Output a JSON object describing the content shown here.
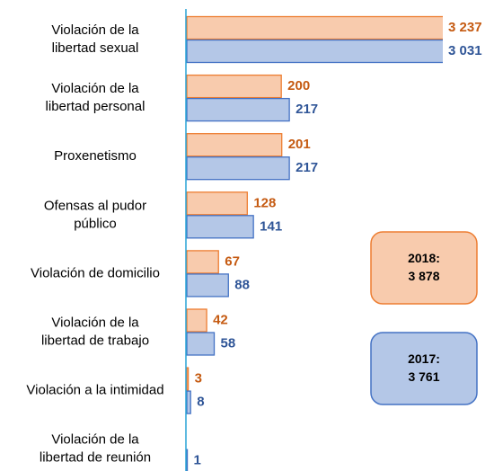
{
  "chart_data": {
    "type": "bar",
    "orientation": "horizontal",
    "categories": [
      "Violación de la\nlibertad sexual",
      "Violación de la\nlibertad personal",
      "Proxenetismo",
      "Ofensas al pudor\npúblico",
      "Violación de domicilio",
      "Violación de la\nlibertad de trabajo",
      "Violación a la intimidad",
      "Violación de la\nlibertad de reunión"
    ],
    "series": [
      {
        "color": "#f8cbad",
        "edge": "#ed7d31",
        "label_color": "#c55a11",
        "values": [
          3237,
          200,
          201,
          128,
          67,
          42,
          3,
          null
        ],
        "value_labels": [
          "3 237",
          "200",
          "201",
          "128",
          "67",
          "42",
          "3",
          null
        ]
      },
      {
        "color": "#b4c7e7",
        "edge": "#4472c4",
        "label_color": "#2f5597",
        "values": [
          3031,
          217,
          217,
          141,
          88,
          58,
          8,
          1
        ],
        "value_labels": [
          "3 031",
          "217",
          "217",
          "141",
          "88",
          "58",
          "8",
          "1"
        ]
      }
    ],
    "xlim": [
      0,
      540
    ],
    "annotations": [
      {
        "text": "2018:\n3 878",
        "color": "#f8cbad",
        "edge": "#ed7d31"
      },
      {
        "text": "2017:\n3 761",
        "color": "#b4c7e7",
        "edge": "#4472c4"
      }
    ]
  }
}
